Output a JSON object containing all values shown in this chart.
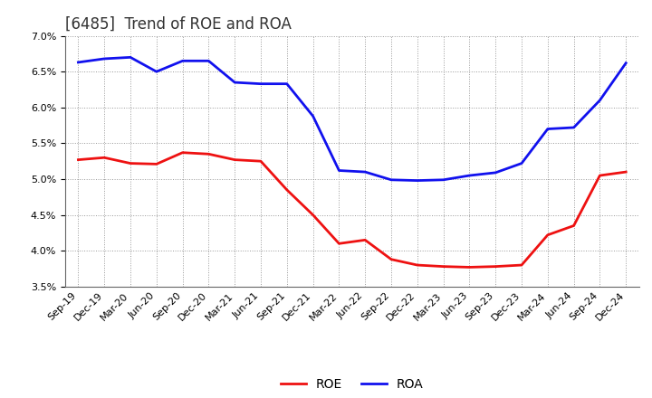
{
  "title": "[6485]  Trend of ROE and ROA",
  "x_labels": [
    "Sep-19",
    "Dec-19",
    "Mar-20",
    "Jun-20",
    "Sep-20",
    "Dec-20",
    "Mar-21",
    "Jun-21",
    "Sep-21",
    "Dec-21",
    "Mar-22",
    "Jun-22",
    "Sep-22",
    "Dec-22",
    "Mar-23",
    "Jun-23",
    "Sep-23",
    "Dec-23",
    "Mar-24",
    "Jun-24",
    "Sep-24",
    "Dec-24"
  ],
  "ROE": [
    5.27,
    5.3,
    5.22,
    5.21,
    5.37,
    5.35,
    5.27,
    5.25,
    4.85,
    4.5,
    4.1,
    4.15,
    3.88,
    3.8,
    3.78,
    3.77,
    3.78,
    3.8,
    4.22,
    4.35,
    5.05,
    5.1
  ],
  "ROA": [
    6.63,
    6.68,
    6.7,
    6.5,
    6.65,
    6.65,
    6.35,
    6.33,
    6.33,
    5.88,
    5.12,
    5.1,
    4.99,
    4.98,
    4.99,
    5.05,
    5.09,
    5.22,
    5.7,
    5.72,
    6.1,
    6.62
  ],
  "roe_color": "#ee1111",
  "roa_color": "#1111ee",
  "ylim": [
    3.5,
    7.0
  ],
  "yticks": [
    3.5,
    4.0,
    4.5,
    5.0,
    5.5,
    6.0,
    6.5,
    7.0
  ],
  "background_color": "#ffffff",
  "grid_color": "#999999",
  "line_width": 2.0,
  "title_fontsize": 12,
  "tick_fontsize": 8,
  "legend_fontsize": 10
}
